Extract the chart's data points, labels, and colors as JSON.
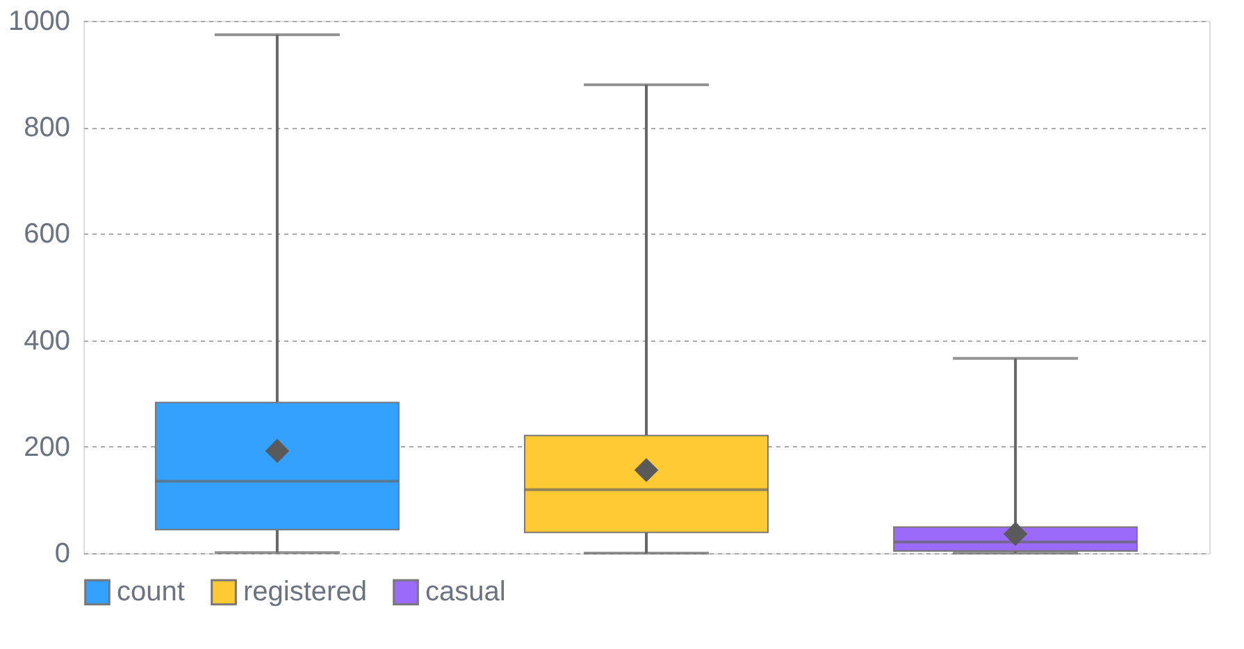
{
  "chart_data": {
    "type": "box",
    "categories": [
      null,
      null,
      null
    ],
    "series": [
      {
        "name": "count",
        "color": "#33a1fd",
        "boxes": [
          {
            "low": 1,
            "q1": 44,
            "median": 135,
            "q3": 283,
            "high": 974,
            "mean": 192
          },
          null,
          null
        ]
      },
      {
        "name": "registered",
        "color": "#ffca33",
        "boxes": [
          null,
          {
            "low": 0,
            "q1": 39,
            "median": 119,
            "q3": 221,
            "high": 880,
            "mean": 156
          },
          null
        ]
      },
      {
        "name": "casual",
        "color": "#9a6bfa",
        "boxes": [
          null,
          null,
          {
            "low": 0,
            "q1": 4,
            "median": 21,
            "q3": 49,
            "high": 366,
            "mean": 36
          }
        ]
      }
    ],
    "ylim": [
      0,
      1000
    ],
    "yticks": [
      0,
      200,
      400,
      600,
      800,
      1000
    ],
    "grid": "y",
    "legend": "bottom",
    "marker": "diamond",
    "tick_labels": "y"
  }
}
